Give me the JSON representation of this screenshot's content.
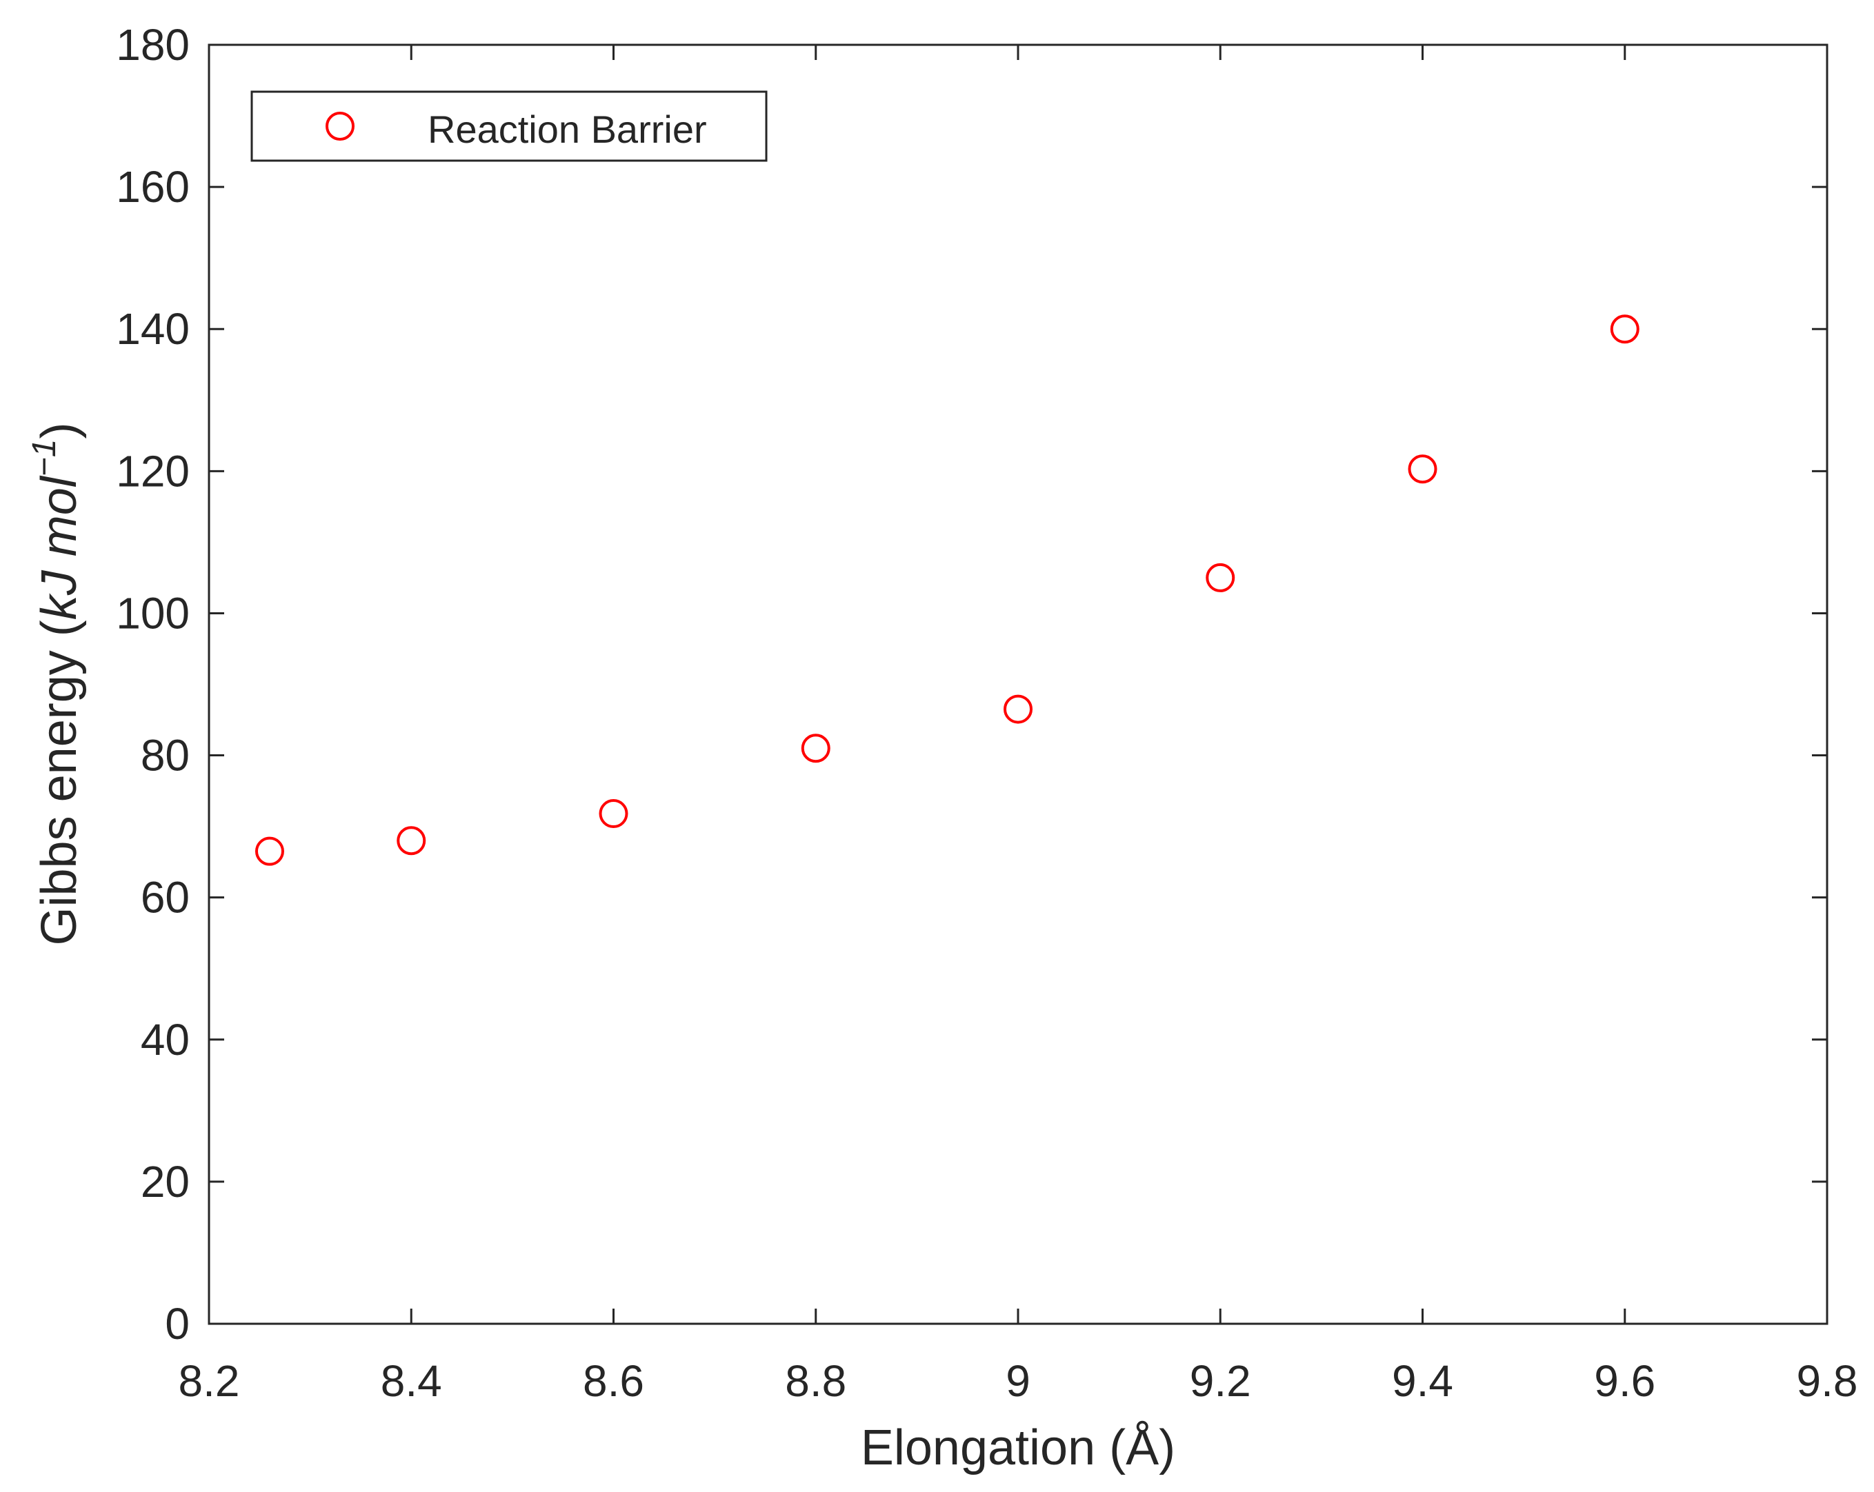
{
  "chart_data": {
    "type": "scatter",
    "xlabel": "Elongation (Å)",
    "ylabel_prefix": "Gibbs energy (",
    "ylabel_unit": "kJ mol",
    "ylabel_exponent": "−1",
    "ylabel_suffix": ")",
    "xlim": [
      8.2,
      9.8
    ],
    "ylim": [
      0,
      180
    ],
    "xticks": [
      "8.2",
      "8.4",
      "8.6",
      "8.8",
      "9",
      "9.2",
      "9.4",
      "9.6",
      "9.8"
    ],
    "yticks": [
      "0",
      "20",
      "40",
      "60",
      "80",
      "100",
      "120",
      "140",
      "160",
      "180"
    ],
    "legend_position": "top-left",
    "grid": false,
    "series": [
      {
        "name": "Reaction Barrier",
        "marker": "open-circle",
        "color": "#ff0000",
        "x": [
          8.26,
          8.4,
          8.6,
          8.8,
          9.0,
          9.2,
          9.4,
          9.6
        ],
        "y": [
          66.5,
          68.0,
          71.8,
          81.0,
          86.5,
          105.0,
          120.3,
          140.0
        ]
      }
    ]
  }
}
